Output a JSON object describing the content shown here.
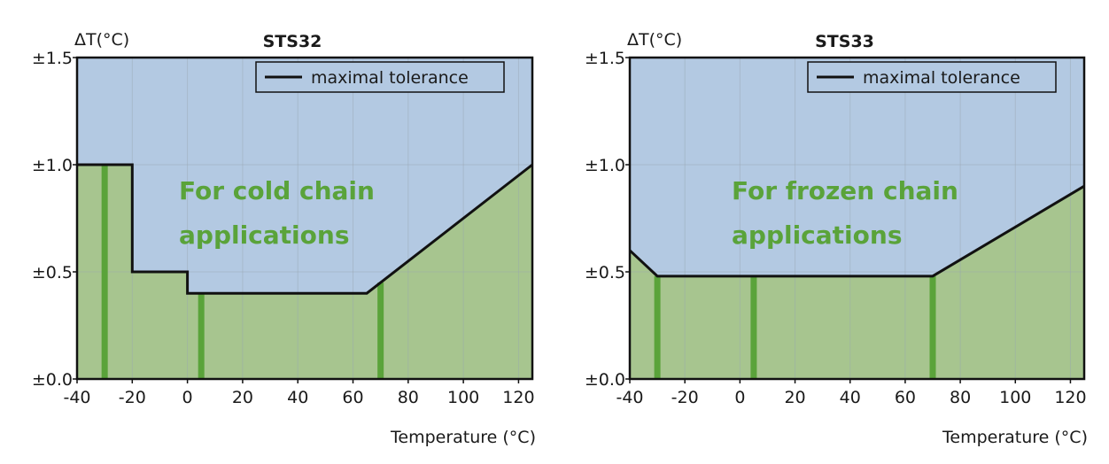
{
  "chart_data": [
    {
      "type": "area",
      "title": "STS32",
      "ylabel": "ΔT(°C)",
      "xlabel": "Temperature (°C)",
      "xlim": [
        -40,
        125
      ],
      "ylim": [
        0,
        1.5
      ],
      "x_ticks": [
        -40,
        -20,
        0,
        20,
        40,
        60,
        80,
        100,
        120
      ],
      "y_ticks": [
        {
          "value": 0.0,
          "label": "±0.0"
        },
        {
          "value": 0.5,
          "label": "±0.5"
        },
        {
          "value": 1.0,
          "label": "±1.0"
        },
        {
          "value": 1.5,
          "label": "±1.5"
        }
      ],
      "grid": true,
      "legend": {
        "label": "maximal tolerance",
        "position": "top-right"
      },
      "tolerance_line": [
        [
          -40,
          1.0
        ],
        [
          -20,
          1.0
        ],
        [
          -20,
          0.5
        ],
        [
          0,
          0.5
        ],
        [
          0,
          0.4
        ],
        [
          65,
          0.4
        ],
        [
          125,
          1.0
        ]
      ],
      "marker_lines": [
        {
          "x": -30,
          "y": 1.0
        },
        {
          "x": 5,
          "y": 0.4
        },
        {
          "x": 70,
          "y": 0.45
        }
      ],
      "annotation": [
        "For cold chain",
        "applications"
      ],
      "colors": {
        "above": "#b3c9e2",
        "below": "#a7c58f",
        "line": "#111111",
        "marker": "#5aa33a",
        "grid": "#9aa6b2"
      }
    },
    {
      "type": "area",
      "title": "STS33",
      "ylabel": "ΔT(°C)",
      "xlabel": "Temperature (°C)",
      "xlim": [
        -40,
        125
      ],
      "ylim": [
        0,
        1.5
      ],
      "x_ticks": [
        -40,
        -20,
        0,
        20,
        40,
        60,
        80,
        100,
        120
      ],
      "y_ticks": [
        {
          "value": 0.0,
          "label": "±0.0"
        },
        {
          "value": 0.5,
          "label": "±0.5"
        },
        {
          "value": 1.0,
          "label": "±1.0"
        },
        {
          "value": 1.5,
          "label": "±1.5"
        }
      ],
      "grid": true,
      "legend": {
        "label": "maximal tolerance",
        "position": "top-right"
      },
      "tolerance_line": [
        [
          -40,
          0.6
        ],
        [
          -30,
          0.48
        ],
        [
          70,
          0.48
        ],
        [
          125,
          0.9
        ]
      ],
      "marker_lines": [
        {
          "x": -30,
          "y": 0.48
        },
        {
          "x": 5,
          "y": 0.48
        },
        {
          "x": 70,
          "y": 0.48
        }
      ],
      "annotation": [
        "For frozen chain",
        "applications"
      ],
      "colors": {
        "above": "#b3c9e2",
        "below": "#a7c58f",
        "line": "#111111",
        "marker": "#5aa33a",
        "grid": "#9aa6b2"
      }
    }
  ]
}
